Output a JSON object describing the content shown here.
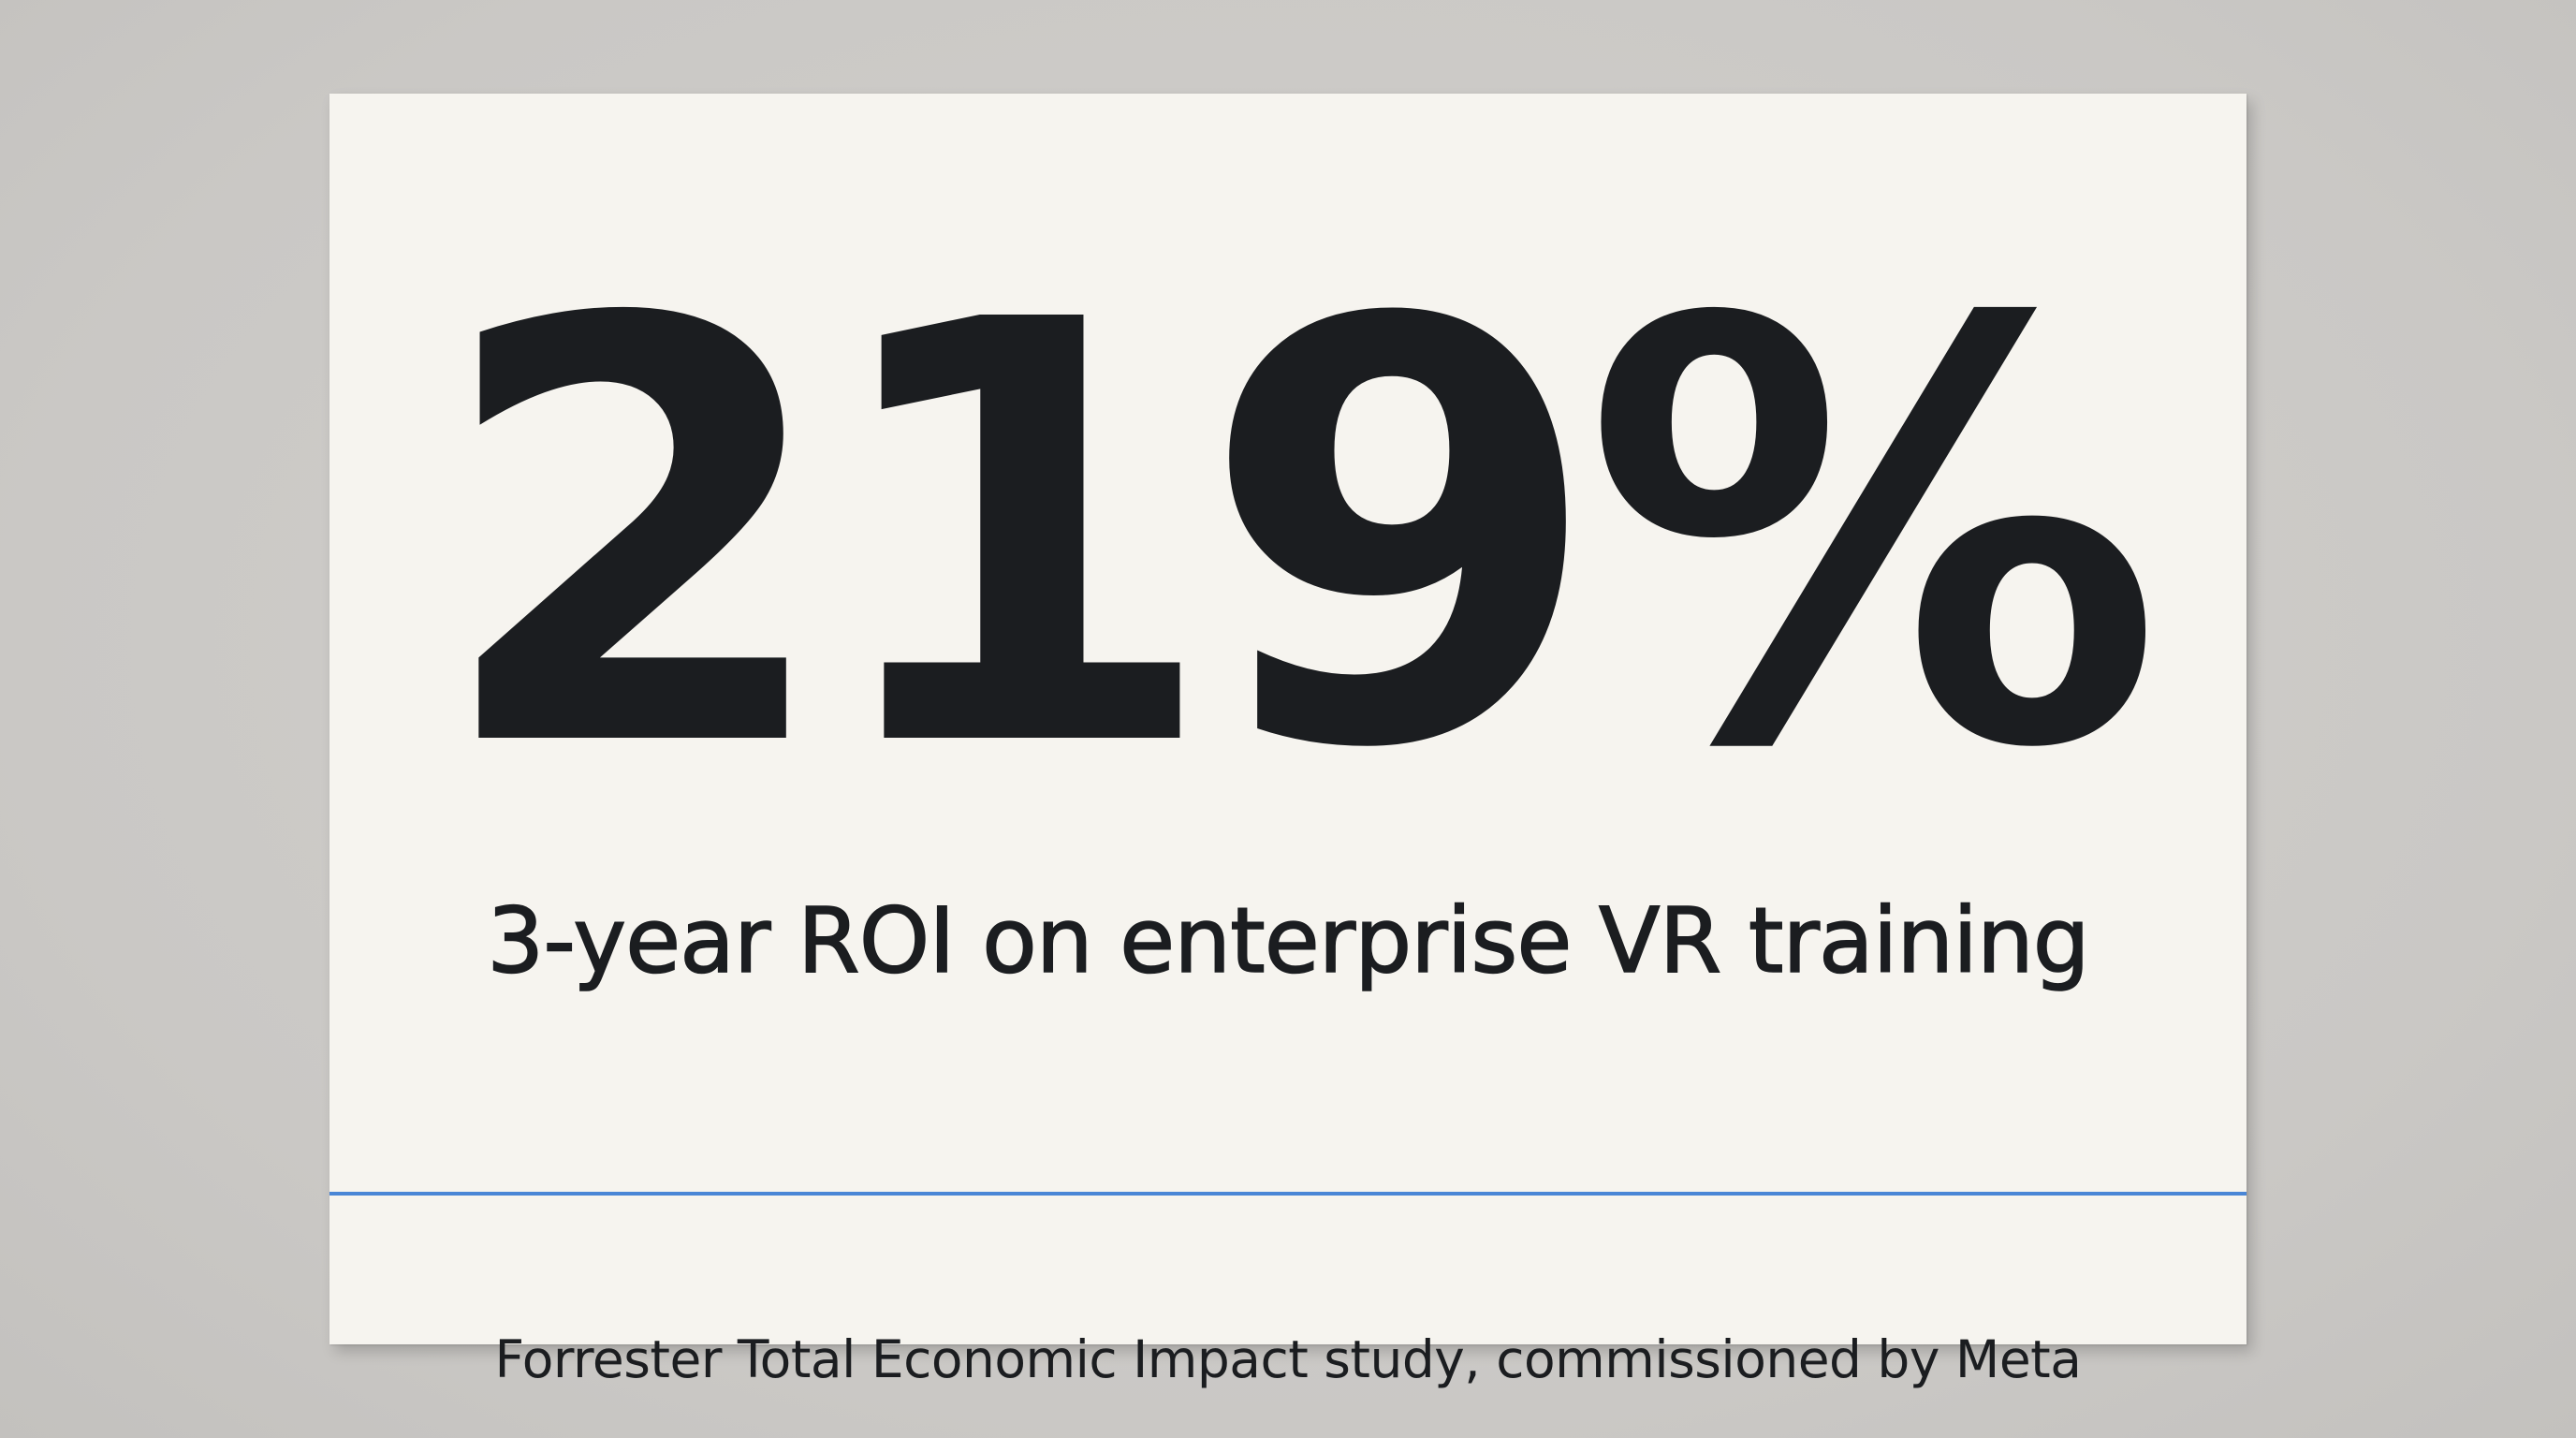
{
  "stat_card": {
    "value": "219%",
    "caption": "3-year ROI on enterprise VR training",
    "source": "Forrester Total Economic Impact study, commissioned by Meta",
    "colors": {
      "background": "#cbc9c6",
      "card": "#f6f4ef",
      "text": "#1b1d20",
      "divider": "#4a86d6"
    }
  }
}
